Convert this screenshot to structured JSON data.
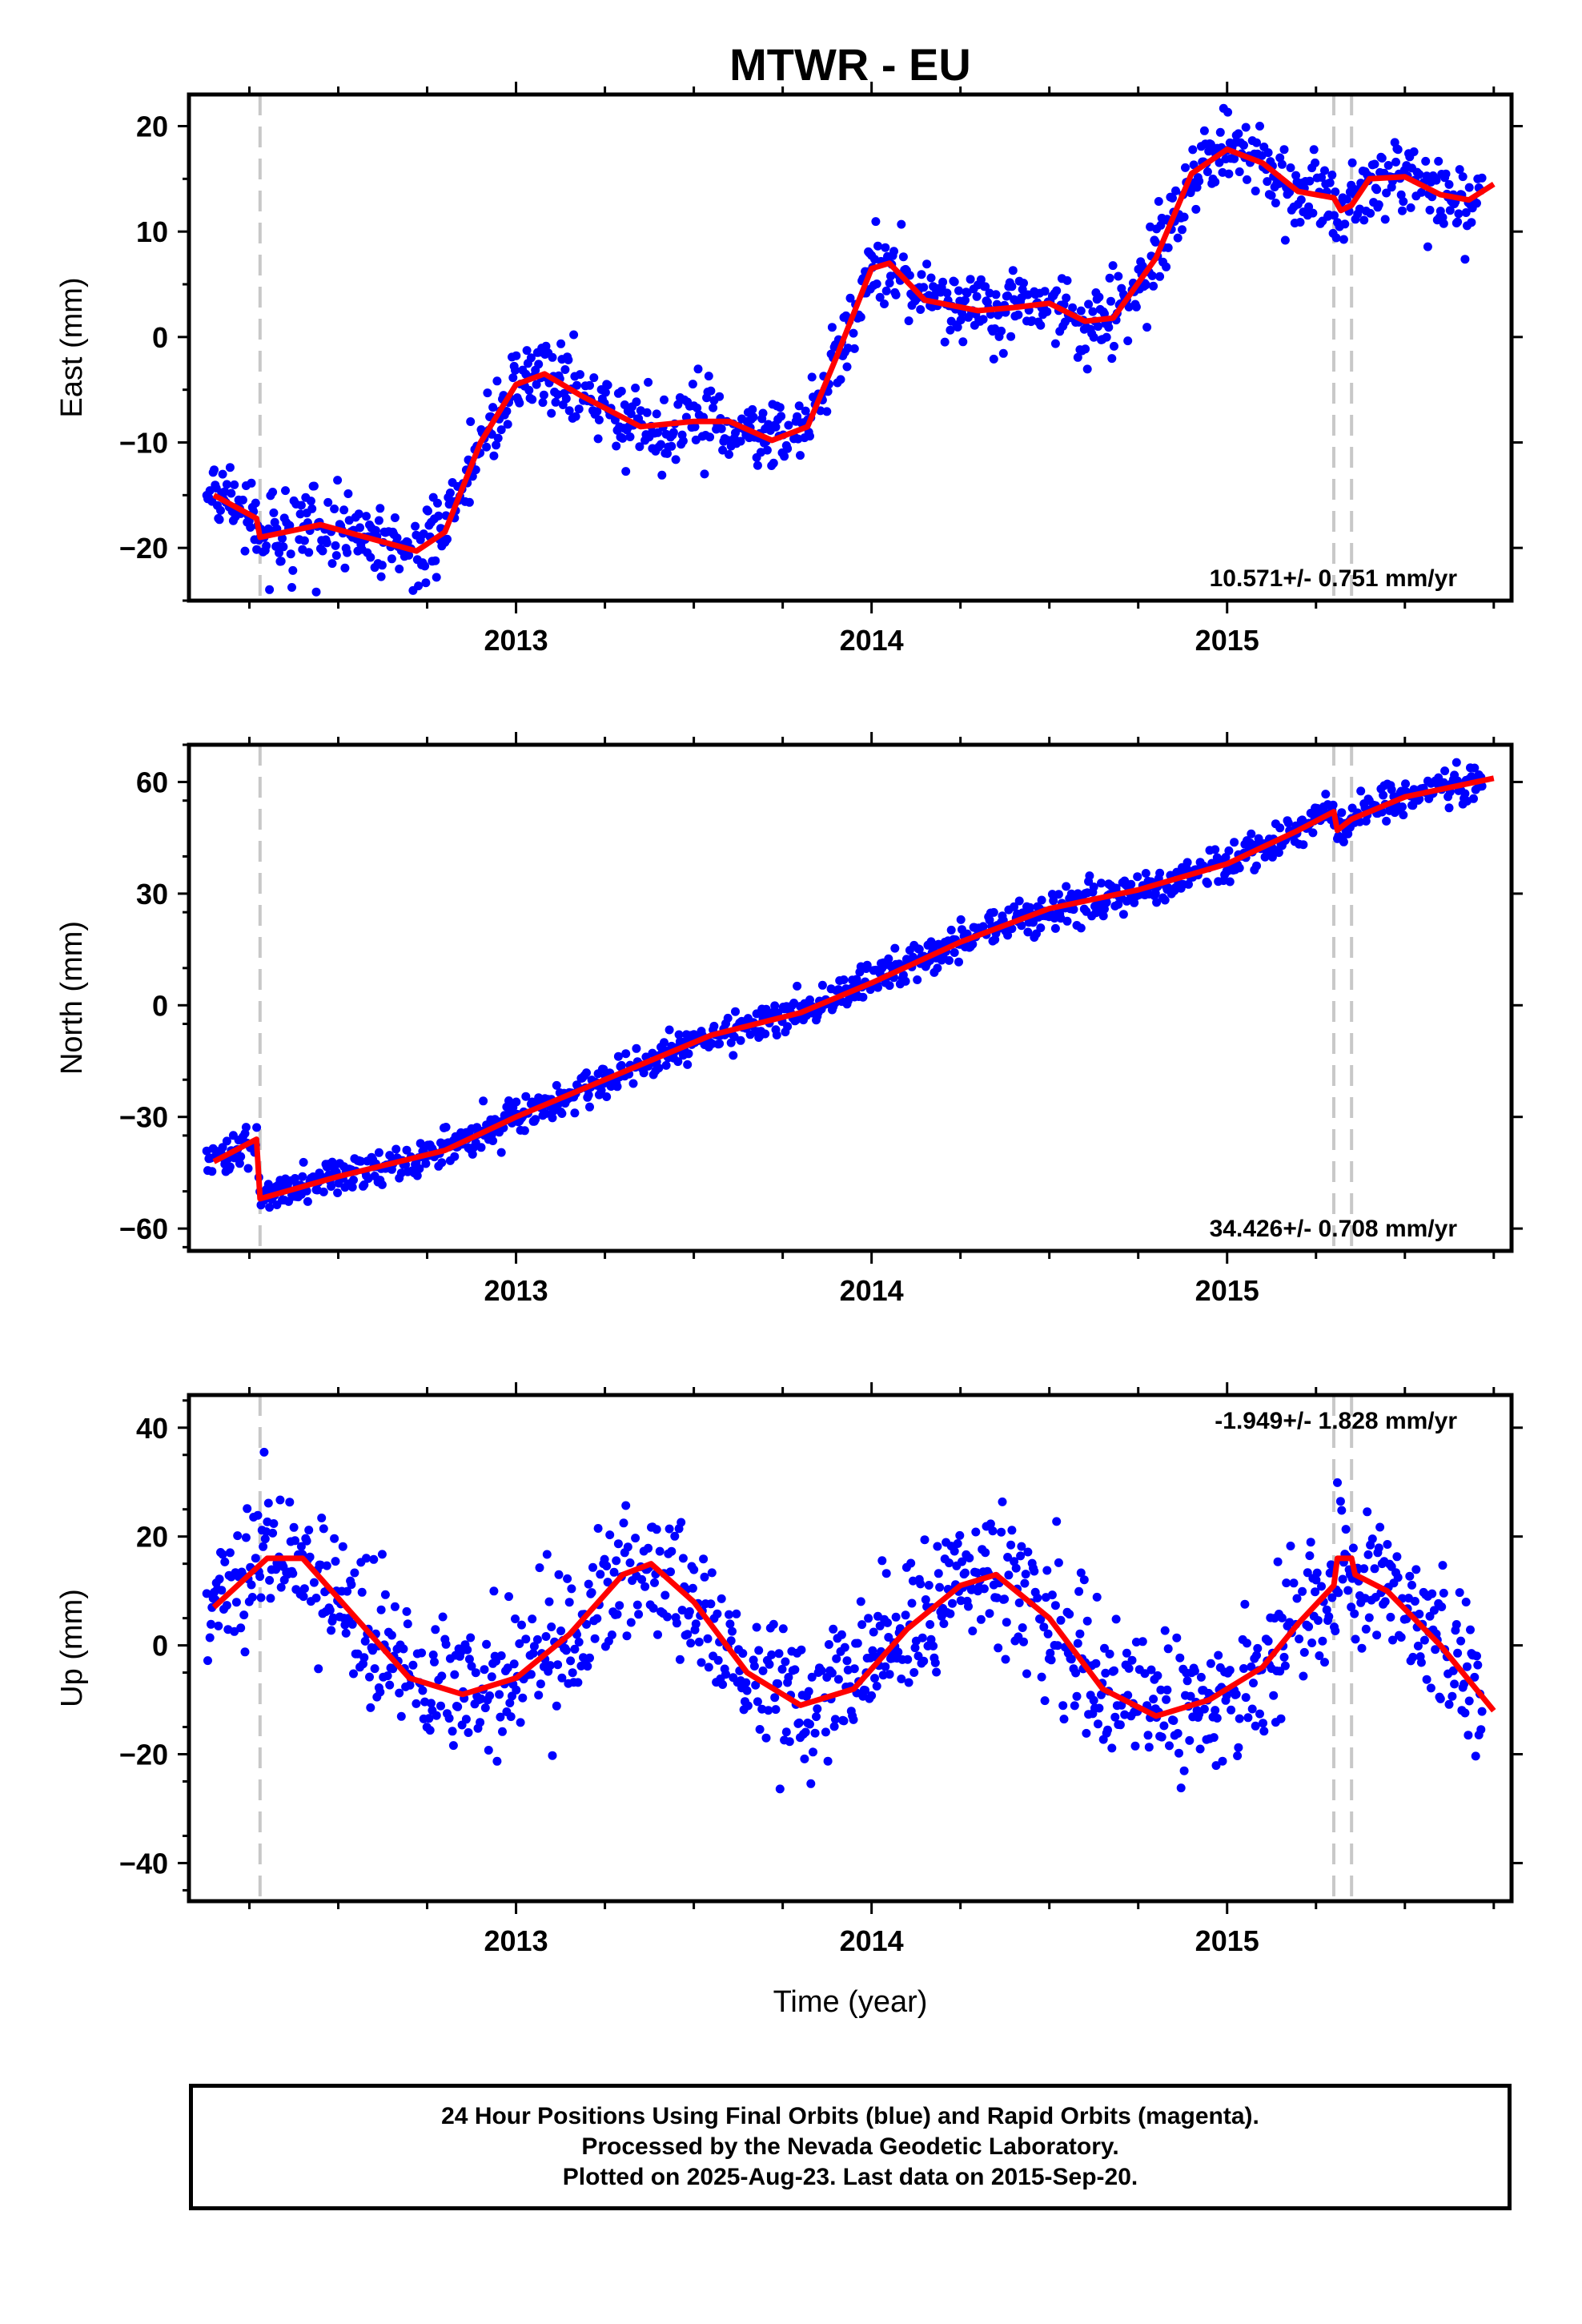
{
  "title": "MTWR - EU",
  "x_label": "Time (year)",
  "caption": {
    "line1": "24 Hour Positions Using Final Orbits (blue) and Rapid Orbits (magenta).",
    "line2": "Processed by the Nevada Geodetic Laboratory.",
    "line3": "Plotted on 2025-Aug-23. Last data on 2015-Sep-20."
  },
  "colors": {
    "data": "#0000ff",
    "model": "#ff0000",
    "event_lines": "#c8c8c8"
  },
  "chart_data": [
    {
      "type": "scatter",
      "component": "east",
      "ylabel": "East (mm)",
      "xlim": [
        2012.08,
        2015.8
      ],
      "ylim": [
        -25,
        23
      ],
      "xticks": [
        2013,
        2014,
        2015
      ],
      "yticks": [
        -20,
        -10,
        0,
        10,
        20
      ],
      "rate_text": "10.571+/- 0.751 mm/yr",
      "rate_position": "bottom-right",
      "event_lines": [
        2012.28,
        2015.3,
        2015.35
      ],
      "model": [
        [
          2012.15,
          -15.0
        ],
        [
          2012.27,
          -17.2
        ],
        [
          2012.28,
          -19.0
        ],
        [
          2012.45,
          -17.8
        ],
        [
          2012.6,
          -19.2
        ],
        [
          2012.72,
          -20.3
        ],
        [
          2012.8,
          -18.5
        ],
        [
          2012.9,
          -10
        ],
        [
          2013.0,
          -4.5
        ],
        [
          2013.08,
          -3.5
        ],
        [
          2013.18,
          -5.5
        ],
        [
          2013.35,
          -8.5
        ],
        [
          2013.5,
          -8.0
        ],
        [
          2013.6,
          -8.0
        ],
        [
          2013.72,
          -9.8
        ],
        [
          2013.82,
          -8.5
        ],
        [
          2013.9,
          -2
        ],
        [
          2014.0,
          6.5
        ],
        [
          2014.05,
          7.0
        ],
        [
          2014.15,
          3.5
        ],
        [
          2014.3,
          2.5
        ],
        [
          2014.4,
          2.8
        ],
        [
          2014.5,
          3.2
        ],
        [
          2014.6,
          1.5
        ],
        [
          2014.68,
          1.8
        ],
        [
          2014.8,
          7.5
        ],
        [
          2014.9,
          15.5
        ],
        [
          2015.0,
          17.8
        ],
        [
          2015.1,
          16.5
        ],
        [
          2015.2,
          13.8
        ],
        [
          2015.3,
          13.2
        ],
        [
          2015.32,
          12.0
        ],
        [
          2015.35,
          12.5
        ],
        [
          2015.4,
          15.0
        ],
        [
          2015.5,
          15.2
        ],
        [
          2015.6,
          13.5
        ],
        [
          2015.68,
          13.0
        ],
        [
          2015.75,
          14.5
        ]
      ],
      "scatter_sd": 1.8
    },
    {
      "type": "scatter",
      "component": "north",
      "ylabel": "North (mm)",
      "xlim": [
        2012.08,
        2015.8
      ],
      "ylim": [
        -66,
        70
      ],
      "xticks": [
        2013,
        2014,
        2015
      ],
      "yticks": [
        -60,
        -30,
        0,
        30,
        60
      ],
      "rate_text": "34.426+/- 0.708 mm/yr",
      "rate_position": "bottom-right",
      "event_lines": [
        2012.28,
        2015.3,
        2015.35
      ],
      "model": [
        [
          2012.15,
          -42
        ],
        [
          2012.27,
          -36
        ],
        [
          2012.28,
          -52
        ],
        [
          2012.5,
          -46
        ],
        [
          2012.8,
          -39
        ],
        [
          2013.0,
          -30
        ],
        [
          2013.3,
          -18
        ],
        [
          2013.55,
          -8
        ],
        [
          2013.8,
          -2
        ],
        [
          2014.0,
          6
        ],
        [
          2014.25,
          17
        ],
        [
          2014.5,
          26
        ],
        [
          2014.75,
          31
        ],
        [
          2015.0,
          38
        ],
        [
          2015.2,
          47
        ],
        [
          2015.3,
          52
        ],
        [
          2015.31,
          47
        ],
        [
          2015.35,
          50
        ],
        [
          2015.5,
          56
        ],
        [
          2015.75,
          61
        ]
      ],
      "scatter_sd": 2.5
    },
    {
      "type": "scatter",
      "component": "up",
      "ylabel": "Up (mm)",
      "xlim": [
        2012.08,
        2015.8
      ],
      "ylim": [
        -47,
        46
      ],
      "xticks": [
        2013,
        2014,
        2015
      ],
      "yticks": [
        -40,
        -20,
        0,
        20,
        40
      ],
      "rate_text": "-1.949+/- 1.828 mm/yr",
      "rate_position": "top-right",
      "event_lines": [
        2012.28,
        2015.3,
        2015.35
      ],
      "model": [
        [
          2012.15,
          7
        ],
        [
          2012.3,
          16
        ],
        [
          2012.4,
          16
        ],
        [
          2012.55,
          5
        ],
        [
          2012.7,
          -6
        ],
        [
          2012.85,
          -9
        ],
        [
          2013.0,
          -6
        ],
        [
          2013.15,
          2
        ],
        [
          2013.3,
          13
        ],
        [
          2013.38,
          15
        ],
        [
          2013.5,
          8
        ],
        [
          2013.65,
          -5
        ],
        [
          2013.8,
          -11
        ],
        [
          2013.95,
          -8
        ],
        [
          2014.1,
          3
        ],
        [
          2014.25,
          11
        ],
        [
          2014.35,
          13
        ],
        [
          2014.5,
          5
        ],
        [
          2014.65,
          -8
        ],
        [
          2014.8,
          -13
        ],
        [
          2014.95,
          -10
        ],
        [
          2015.1,
          -4
        ],
        [
          2015.2,
          4
        ],
        [
          2015.3,
          11
        ],
        [
          2015.31,
          16
        ],
        [
          2015.35,
          16
        ],
        [
          2015.36,
          13
        ],
        [
          2015.45,
          10
        ],
        [
          2015.6,
          0
        ],
        [
          2015.75,
          -12
        ]
      ],
      "scatter_sd": 6.5
    }
  ]
}
